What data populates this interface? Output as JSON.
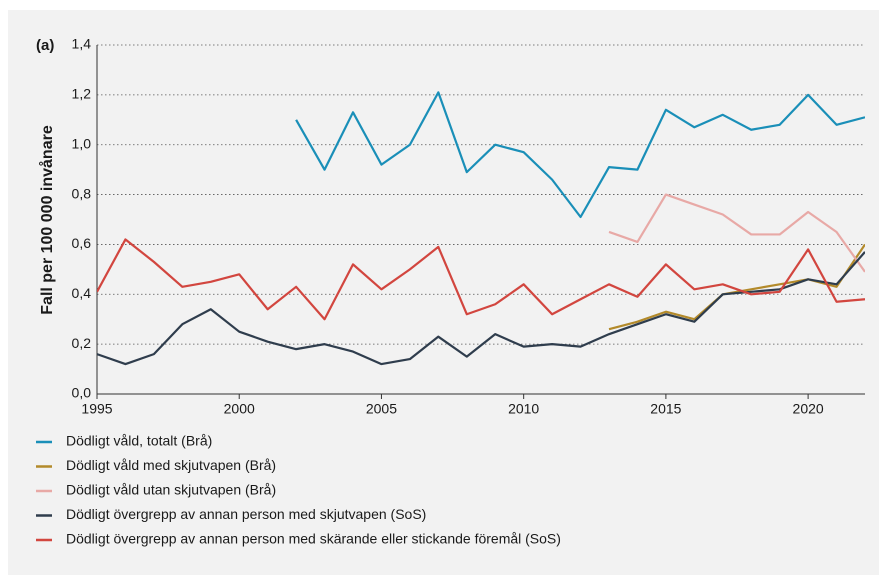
{
  "chart_data": {
    "type": "line",
    "panel_label": "(a)",
    "y_label": "Fall per 100 000 invånare",
    "x": [
      1995,
      1996,
      1997,
      1998,
      1999,
      2000,
      2001,
      2002,
      2003,
      2004,
      2005,
      2006,
      2007,
      2008,
      2009,
      2010,
      2011,
      2012,
      2013,
      2014,
      2015,
      2016,
      2017,
      2018,
      2019,
      2020,
      2021,
      2022
    ],
    "series": [
      {
        "name": "Dödligt våld, totalt (Brå)",
        "color": "#1a8fb8",
        "values": [
          null,
          null,
          null,
          null,
          null,
          null,
          null,
          1.1,
          0.9,
          1.13,
          0.92,
          1.0,
          1.21,
          0.89,
          1.0,
          0.97,
          0.86,
          0.71,
          0.91,
          0.9,
          1.14,
          1.07,
          1.12,
          1.06,
          1.08,
          1.2,
          1.08,
          1.11
        ]
      },
      {
        "name": "Dödligt våld med skjutvapen (Brå)",
        "color": "#b38a2a",
        "values": [
          null,
          null,
          null,
          null,
          null,
          null,
          null,
          null,
          null,
          null,
          null,
          null,
          null,
          null,
          null,
          null,
          null,
          null,
          0.26,
          0.29,
          0.33,
          0.3,
          0.4,
          0.42,
          0.44,
          0.46,
          0.43,
          0.6
        ]
      },
      {
        "name": "Dödligt våld utan skjutvapen (Brå)",
        "color": "#e8a9a6",
        "values": [
          null,
          null,
          null,
          null,
          null,
          null,
          null,
          null,
          null,
          null,
          null,
          null,
          null,
          null,
          null,
          null,
          null,
          null,
          0.65,
          0.61,
          0.8,
          0.76,
          0.72,
          0.64,
          0.64,
          0.73,
          0.65,
          0.49
        ]
      },
      {
        "name": "Dödligt övergrepp av annan person med skjutvapen (SoS)",
        "color": "#2f3d4d",
        "values": [
          0.16,
          0.12,
          0.16,
          0.28,
          0.34,
          0.25,
          0.21,
          0.18,
          0.2,
          0.17,
          0.12,
          0.14,
          0.23,
          0.15,
          0.24,
          0.19,
          0.2,
          0.19,
          0.24,
          0.28,
          0.32,
          0.29,
          0.4,
          0.41,
          0.42,
          0.46,
          0.44,
          0.57
        ]
      },
      {
        "name": "Dödligt övergrepp av annan person med skärande eller stickande föremål (SoS)",
        "color": "#d2463f",
        "values": [
          0.41,
          0.62,
          0.53,
          0.43,
          0.45,
          0.48,
          0.34,
          0.43,
          0.3,
          0.52,
          0.42,
          0.5,
          0.59,
          0.32,
          0.36,
          0.44,
          0.32,
          0.38,
          0.44,
          0.39,
          0.52,
          0.42,
          0.44,
          0.4,
          0.41,
          0.58,
          0.37,
          0.38
        ]
      }
    ],
    "xlim": [
      1995,
      2022
    ],
    "xticks": [
      1995,
      2000,
      2005,
      2010,
      2015,
      2020
    ],
    "ylim": [
      0,
      1.4
    ],
    "yticks": [
      {
        "value": 0,
        "label": "0,0"
      },
      {
        "value": 0.2,
        "label": "0,2"
      },
      {
        "value": 0.4,
        "label": "0,4"
      },
      {
        "value": 0.6,
        "label": "0,6"
      },
      {
        "value": 0.8,
        "label": "0,8"
      },
      {
        "value": 1.0,
        "label": "1,0"
      },
      {
        "value": 1.2,
        "label": "1,2"
      },
      {
        "value": 1.4,
        "label": "1,4"
      }
    ],
    "grid": true
  }
}
